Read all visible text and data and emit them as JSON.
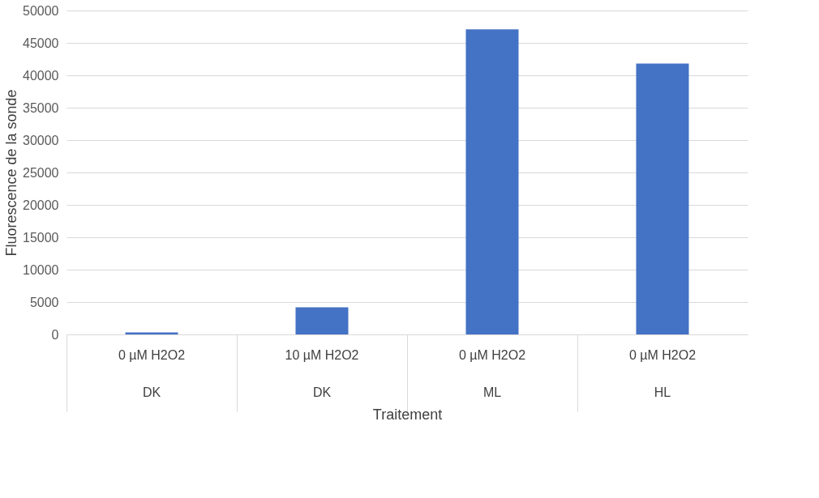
{
  "chart_data": {
    "type": "bar",
    "xlabel": "Traitement",
    "ylabel": "Fluorescence de la sonde",
    "categories": [
      "0 µM H2O2",
      "10 µM H2O2",
      "0 µM H2O2",
      "0 µM H2O2"
    ],
    "values": [
      300,
      4200,
      47100,
      41800
    ],
    "color": "#4472c4",
    "annotations": [
      "DK",
      "DK",
      "ML",
      "HL"
    ],
    "ylim": [
      0,
      50000
    ],
    "yticks": [
      0,
      5000,
      10000,
      15000,
      20000,
      25000,
      30000,
      35000,
      40000,
      45000,
      50000
    ],
    "grid": "y"
  }
}
